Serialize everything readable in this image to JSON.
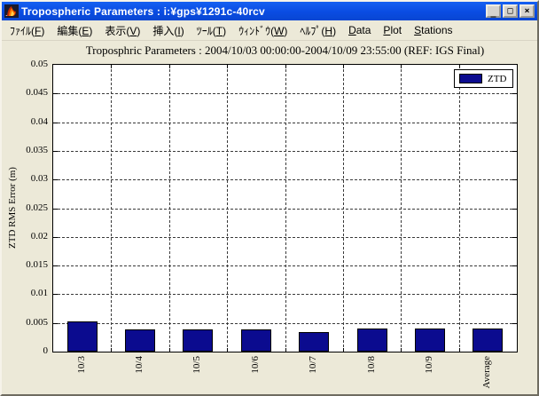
{
  "window": {
    "title": "Tropospheric Parameters : i:¥gps¥1291c-40rcv",
    "controls": [
      {
        "name": "minimize",
        "glyph": "_"
      },
      {
        "name": "maximize",
        "glyph": "□"
      },
      {
        "name": "close",
        "glyph": "×"
      }
    ]
  },
  "menu": {
    "items": [
      {
        "pre": "ﾌｧｲﾙ",
        "key": "F",
        "paren": true
      },
      {
        "pre": "編集",
        "key": "E",
        "paren": true
      },
      {
        "pre": "表示",
        "key": "V",
        "paren": true
      },
      {
        "pre": "挿入",
        "key": "I",
        "paren": true
      },
      {
        "pre": "ﾂｰﾙ",
        "key": "T",
        "paren": true
      },
      {
        "pre": "ｳｨﾝﾄﾞｳ",
        "key": "W",
        "paren": true
      },
      {
        "pre": "ﾍﾙﾌﾟ",
        "key": "H",
        "paren": true
      },
      {
        "pre": "Data",
        "key": "D",
        "paren": false
      },
      {
        "pre": "Plot",
        "key": "P",
        "paren": false
      },
      {
        "pre": "Stations",
        "key": "S",
        "paren": false
      }
    ]
  },
  "chart_data": {
    "type": "bar",
    "title": "Troposphric Parameters : 2004/10/03 00:00:00-2004/10/09 23:55:00 (REF: IGS Final)",
    "categories": [
      "10/3",
      "10/4",
      "10/5",
      "10/6",
      "10/7",
      "10/8",
      "10/9",
      "Average"
    ],
    "series": [
      {
        "name": "ZTD",
        "values": [
          0.0053,
          0.0039,
          0.0038,
          0.0039,
          0.0034,
          0.0041,
          0.004,
          0.004
        ]
      }
    ],
    "xlabel": "",
    "ylabel": "ZTD RMS Error (m)",
    "ylim": [
      0,
      0.05
    ],
    "ytick_step": 0.005,
    "ytick_labels": [
      "0",
      "0.005",
      "0.01",
      "0.015",
      "0.02",
      "0.025",
      "0.03",
      "0.035",
      "0.04",
      "0.045",
      "0.05"
    ],
    "grid": true,
    "grid_style": "dashed",
    "legend_position": "top-right",
    "bar_color": "#0b0b8f",
    "bar_edge_color": "#000000",
    "plot_bg": "#ffffff",
    "figure_bg": "#ECE9D8"
  }
}
